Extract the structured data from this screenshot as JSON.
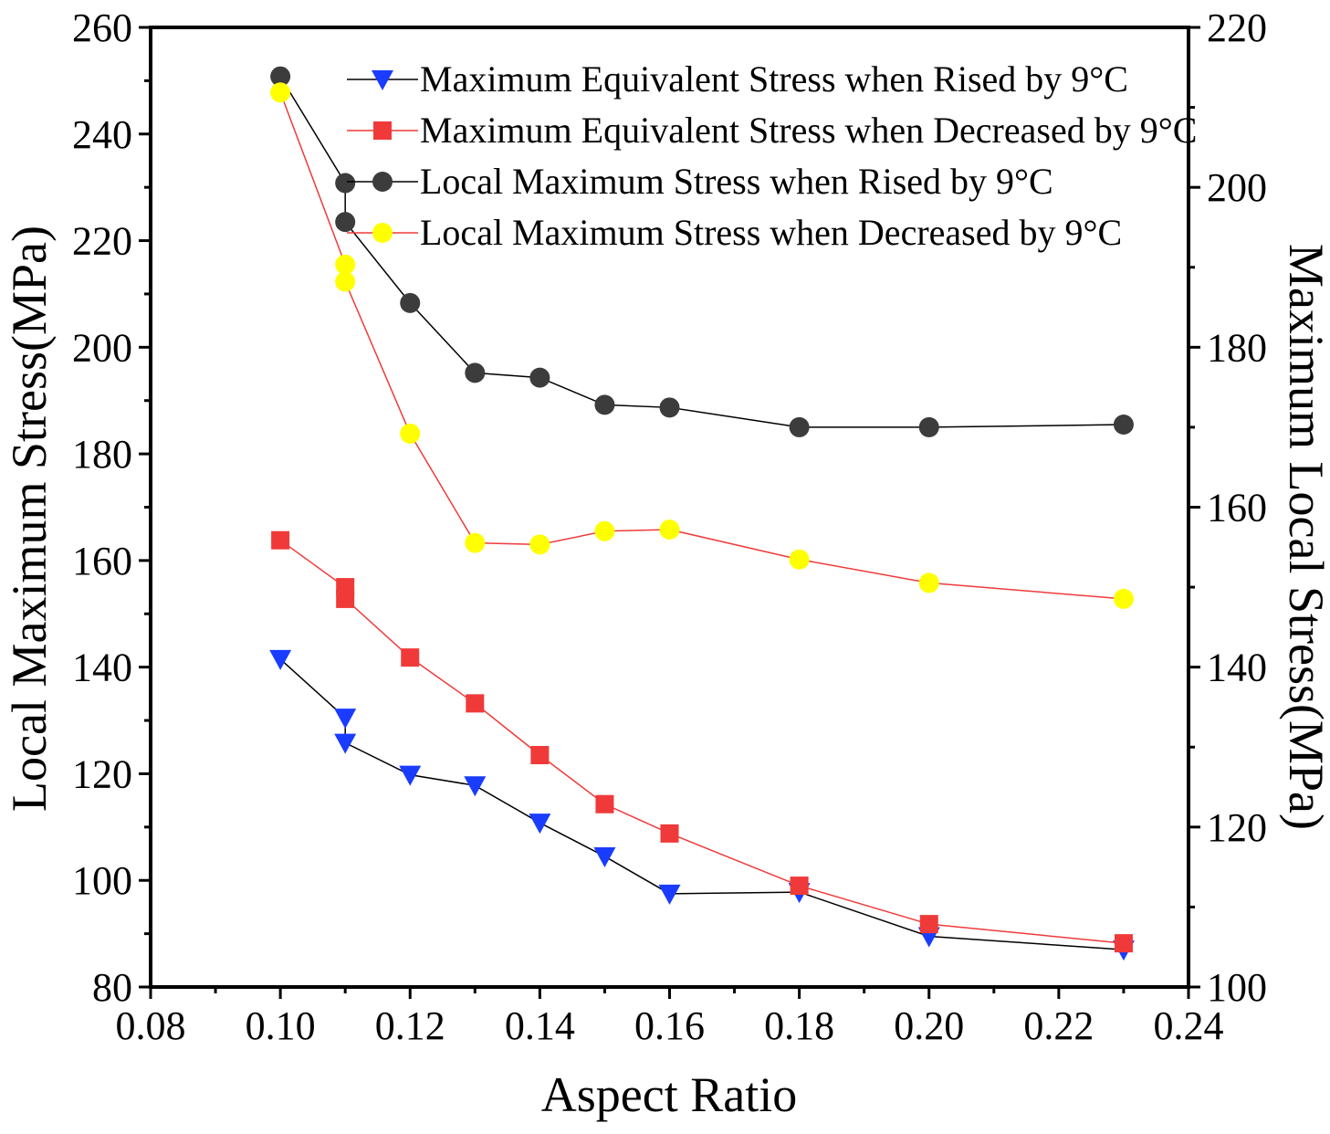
{
  "chart_data": {
    "type": "line",
    "xlabel": "Aspect Ratio",
    "ylabel": "Local Maximum Stress(MPa)",
    "y2label": "Maximum Local Stress(MPa)",
    "xlim": [
      0.08,
      0.24
    ],
    "ylim": [
      80,
      260
    ],
    "y2lim": [
      100,
      220
    ],
    "x_ticks": [
      0.08,
      0.1,
      0.12,
      0.14,
      0.16,
      0.18,
      0.2,
      0.22,
      0.24
    ],
    "x_tick_labels": [
      "0.08",
      "0.10",
      "0.12",
      "0.14",
      "0.16",
      "0.18",
      "0.20",
      "0.22",
      "0.24"
    ],
    "y_ticks": [
      80,
      100,
      120,
      140,
      160,
      180,
      200,
      220,
      240,
      260
    ],
    "y_tick_labels": [
      "80",
      "100",
      "120",
      "140",
      "160",
      "180",
      "200",
      "220",
      "240",
      "260"
    ],
    "y2_ticks": [
      100,
      120,
      140,
      160,
      180,
      200,
      220
    ],
    "y2_tick_labels": [
      "100",
      "120",
      "140",
      "160",
      "180",
      "200",
      "220"
    ],
    "legend_position": "top-right",
    "series": [
      {
        "name": "Maximum Equivalent Stress when Rised by 9°C",
        "axis": "left",
        "marker": "triangle-down",
        "marker_color": "#1a3cff",
        "line_color": "#000000",
        "x": [
          0.1,
          0.11,
          0.11,
          0.12,
          0.13,
          0.14,
          0.15,
          0.16,
          0.18,
          0.2,
          0.23
        ],
        "y": [
          141.5,
          130.5,
          125.8,
          119.8,
          117.8,
          110.8,
          104.5,
          97.5,
          97.8,
          89.5,
          87.0
        ]
      },
      {
        "name": "Maximum Equivalent Stress when Decreased by 9°C",
        "axis": "left",
        "marker": "square",
        "marker_color": "#f03a3a",
        "line_color": "#f03a3a",
        "x": [
          0.1,
          0.11,
          0.11,
          0.12,
          0.13,
          0.14,
          0.15,
          0.16,
          0.18,
          0.2,
          0.23
        ],
        "y": [
          163.8,
          155.0,
          152.8,
          141.8,
          133.2,
          123.5,
          114.3,
          108.8,
          99.0,
          91.8,
          88.2
        ]
      },
      {
        "name": "Local Maximum Stress when Rised by 9°C",
        "axis": "left",
        "marker": "circle",
        "marker_color": "#3c3c3c",
        "line_color": "#000000",
        "x": [
          0.1,
          0.11,
          0.11,
          0.12,
          0.13,
          0.14,
          0.15,
          0.16,
          0.18,
          0.2,
          0.23
        ],
        "y": [
          250.8,
          230.8,
          223.5,
          208.3,
          195.2,
          194.3,
          189.2,
          188.7,
          185.0,
          185.0,
          185.5
        ]
      },
      {
        "name": "Local Maximum Stress when Decreased by 9°C",
        "axis": "left",
        "marker": "circle",
        "marker_color": "#ffff00",
        "line_color": "#f03a3a",
        "x": [
          0.1,
          0.11,
          0.11,
          0.12,
          0.13,
          0.14,
          0.15,
          0.16,
          0.18,
          0.2,
          0.23
        ],
        "y": [
          247.8,
          215.5,
          212.3,
          183.8,
          163.3,
          163.0,
          165.5,
          165.8,
          160.2,
          155.8,
          152.8
        ]
      }
    ]
  }
}
